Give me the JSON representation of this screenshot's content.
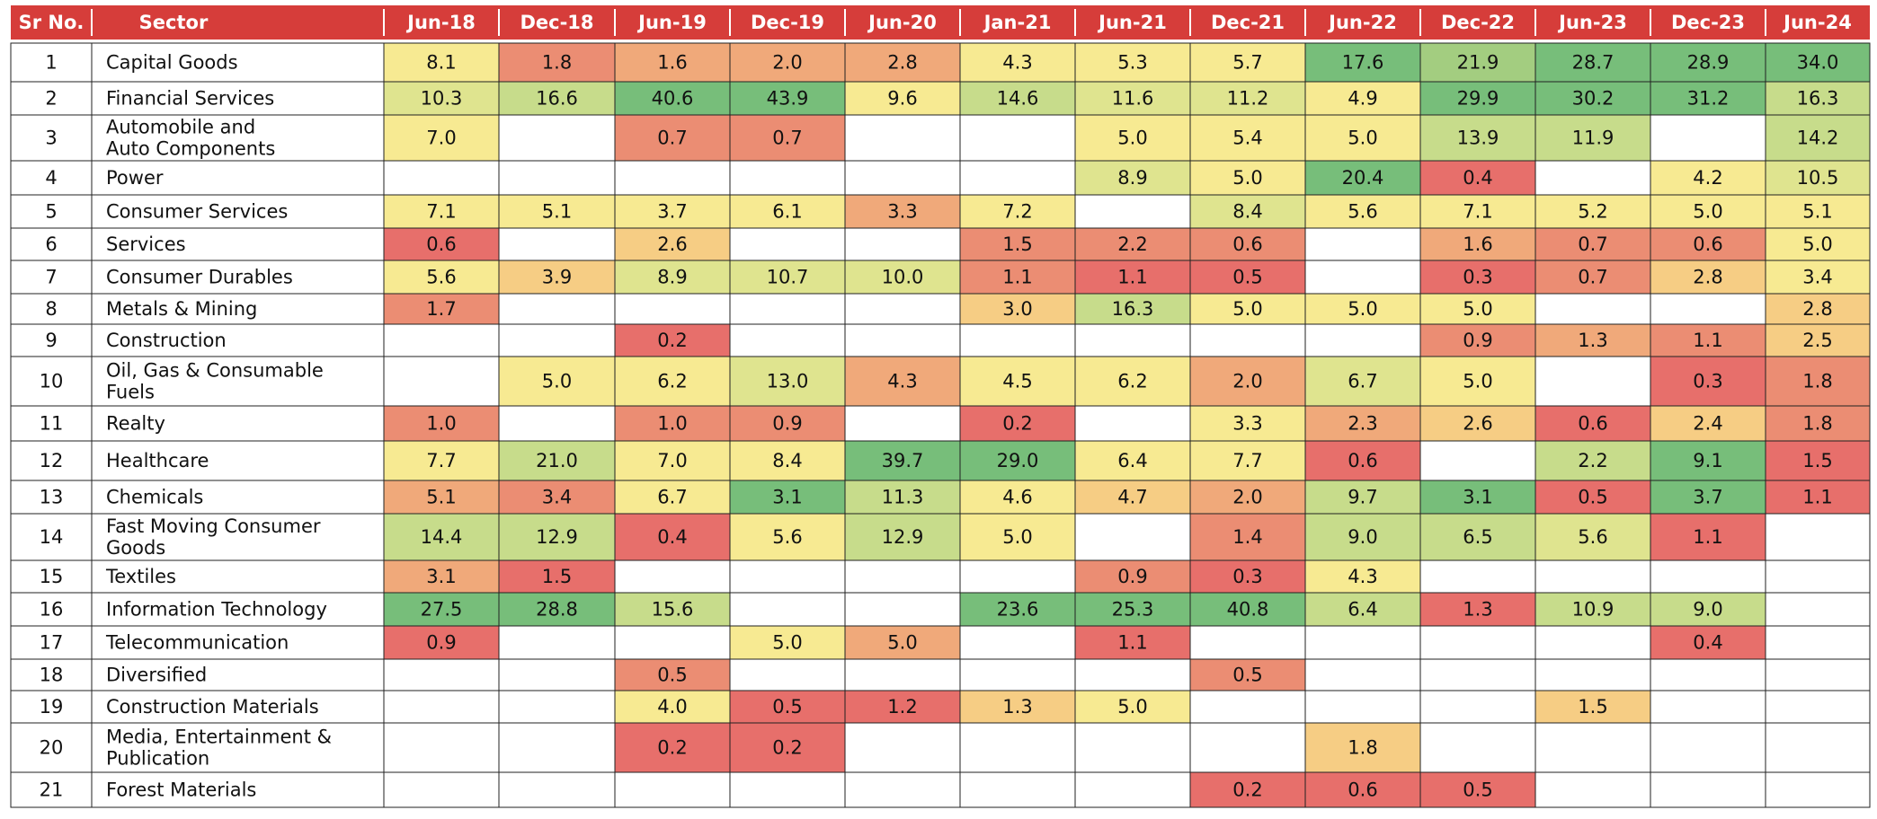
{
  "chart_data": {
    "type": "heatmap",
    "header": {
      "sr_no": "Sr No.",
      "sector": "Sector"
    },
    "columns": [
      "Jun-18",
      "Dec-18",
      "Jun-19",
      "Dec-19",
      "Jun-20",
      "Jan-21",
      "Jun-21",
      "Dec-21",
      "Jun-22",
      "Dec-22",
      "Jun-23",
      "Dec-23",
      "Jun-24"
    ],
    "rows": [
      {
        "sr": "1",
        "sector": [
          "Capital Goods"
        ],
        "values": [
          "8.1",
          "1.8",
          "1.6",
          "2.0",
          "2.8",
          "4.3",
          "5.3",
          "5.7",
          "17.6",
          "21.9",
          "28.7",
          "28.9",
          "34.0"
        ]
      },
      {
        "sr": "2",
        "sector": [
          "Financial Services"
        ],
        "values": [
          "10.3",
          "16.6",
          "40.6",
          "43.9",
          "9.6",
          "14.6",
          "11.6",
          "11.2",
          "4.9",
          "29.9",
          "30.2",
          "31.2",
          "16.3"
        ]
      },
      {
        "sr": "3",
        "sector": [
          "Automobile and",
          "Auto Components"
        ],
        "values": [
          "7.0",
          "",
          "0.7",
          "0.7",
          "",
          "",
          "5.0",
          "5.4",
          "5.0",
          "13.9",
          "11.9",
          "",
          "14.2"
        ]
      },
      {
        "sr": "4",
        "sector": [
          "Power"
        ],
        "values": [
          "",
          "",
          "",
          "",
          "",
          "",
          "8.9",
          "5.0",
          "20.4",
          "0.4",
          "",
          "4.2",
          "10.5"
        ]
      },
      {
        "sr": "5",
        "sector": [
          "Consumer Services"
        ],
        "values": [
          "7.1",
          "5.1",
          "3.7",
          "6.1",
          "3.3",
          "7.2",
          "",
          "8.4",
          "5.6",
          "7.1",
          "5.2",
          "5.0",
          "5.1"
        ]
      },
      {
        "sr": "6",
        "sector": [
          "Services"
        ],
        "values": [
          "0.6",
          "",
          "2.6",
          "",
          "",
          "1.5",
          "2.2",
          "0.6",
          "",
          "1.6",
          "0.7",
          "0.6",
          "5.0"
        ]
      },
      {
        "sr": "7",
        "sector": [
          "Consumer Durables"
        ],
        "values": [
          "5.6",
          "3.9",
          "8.9",
          "10.7",
          "10.0",
          "1.1",
          "1.1",
          "0.5",
          "",
          "0.3",
          "0.7",
          "2.8",
          "3.4"
        ]
      },
      {
        "sr": "8",
        "sector": [
          "Metals & Mining"
        ],
        "values": [
          "1.7",
          "",
          "",
          "",
          "",
          "3.0",
          "16.3",
          "5.0",
          "5.0",
          "5.0",
          "",
          "",
          "2.8"
        ]
      },
      {
        "sr": "9",
        "sector": [
          "Construction"
        ],
        "values": [
          "",
          "",
          "0.2",
          "",
          "",
          "",
          "",
          "",
          "",
          "0.9",
          "1.3",
          "1.1",
          "2.5"
        ]
      },
      {
        "sr": "10",
        "sector": [
          "Oil, Gas & Consumable",
          "Fuels"
        ],
        "values": [
          "",
          "5.0",
          "6.2",
          "13.0",
          "4.3",
          "4.5",
          "6.2",
          "2.0",
          "6.7",
          "5.0",
          "",
          "0.3",
          "1.8"
        ]
      },
      {
        "sr": "11",
        "sector": [
          "Realty"
        ],
        "values": [
          "1.0",
          "",
          "1.0",
          "0.9",
          "",
          "0.2",
          "",
          "3.3",
          "2.3",
          "2.6",
          "0.6",
          "2.4",
          "1.8"
        ]
      },
      {
        "sr": "12",
        "sector": [
          "Healthcare"
        ],
        "values": [
          "7.7",
          "21.0",
          "7.0",
          "8.4",
          "39.7",
          "29.0",
          "6.4",
          "7.7",
          "0.6",
          "",
          "2.2",
          "9.1",
          "1.5"
        ]
      },
      {
        "sr": "13",
        "sector": [
          "Chemicals"
        ],
        "values": [
          "5.1",
          "3.4",
          "6.7",
          "3.1",
          "11.3",
          "4.6",
          "4.7",
          "2.0",
          "9.7",
          "3.1",
          "0.5",
          "3.7",
          "1.1"
        ]
      },
      {
        "sr": "14",
        "sector": [
          "Fast Moving Consumer",
          "Goods"
        ],
        "values": [
          "14.4",
          "12.9",
          "0.4",
          "5.6",
          "12.9",
          "5.0",
          "",
          "1.4",
          "9.0",
          "6.5",
          "5.6",
          "1.1",
          ""
        ]
      },
      {
        "sr": "15",
        "sector": [
          "Textiles"
        ],
        "values": [
          "3.1",
          "1.5",
          "",
          "",
          "",
          "",
          "0.9",
          "0.3",
          "4.3",
          "",
          "",
          "",
          ""
        ]
      },
      {
        "sr": "16",
        "sector": [
          "Information Technology"
        ],
        "values": [
          "27.5",
          "28.8",
          "15.6",
          "",
          "",
          "23.6",
          "25.3",
          "40.8",
          "6.4",
          "1.3",
          "10.9",
          "9.0",
          ""
        ]
      },
      {
        "sr": "17",
        "sector": [
          "Telecommunication"
        ],
        "values": [
          "0.9",
          "",
          "",
          "5.0",
          "5.0",
          "",
          "1.1",
          "",
          "",
          "",
          "",
          "0.4",
          ""
        ]
      },
      {
        "sr": "18",
        "sector": [
          "Diversified"
        ],
        "values": [
          "",
          "",
          "0.5",
          "",
          "",
          "",
          "",
          "0.5",
          "",
          "",
          "",
          "",
          ""
        ]
      },
      {
        "sr": "19",
        "sector": [
          "Construction Materials"
        ],
        "values": [
          "",
          "",
          "4.0",
          "0.5",
          "1.2",
          "1.3",
          "5.0",
          "",
          "",
          "",
          "1.5",
          "",
          ""
        ]
      },
      {
        "sr": "20",
        "sector": [
          "Media, Entertainment &",
          "Publication"
        ],
        "values": [
          "",
          "",
          "0.2",
          "0.2",
          "",
          "",
          "",
          "",
          "1.8",
          "",
          "",
          "",
          ""
        ]
      },
      {
        "sr": "21",
        "sector": [
          "Forest Materials"
        ],
        "values": [
          "",
          "",
          "",
          "",
          "",
          "",
          "",
          "0.2",
          "0.6",
          "0.5",
          "",
          "",
          ""
        ]
      }
    ],
    "colors": {
      "header_bg": "#d63d3a",
      "dark_green": "#77be7a",
      "green": "#a3cd80",
      "light_green": "#c7dc8b",
      "yellow_green": "#dfe48f",
      "yellow": "#f7ea92",
      "light_orange": "#f6cd84",
      "orange": "#f0a97a",
      "salmon": "#eb8d73",
      "red": "#e76f6b",
      "empty": "#ffffff"
    },
    "cell_colors": [
      [
        "yellow",
        "salmon",
        "orange",
        "orange",
        "orange",
        "yellow",
        "yellow",
        "yellow",
        "dark_green",
        "green",
        "dark_green",
        "dark_green",
        "dark_green"
      ],
      [
        "yellow_green",
        "light_green",
        "dark_green",
        "dark_green",
        "yellow",
        "light_green",
        "yellow_green",
        "yellow_green",
        "yellow",
        "dark_green",
        "dark_green",
        "dark_green",
        "light_green"
      ],
      [
        "yellow",
        "empty",
        "salmon",
        "salmon",
        "empty",
        "empty",
        "yellow",
        "yellow",
        "yellow",
        "light_green",
        "light_green",
        "empty",
        "light_green"
      ],
      [
        "empty",
        "empty",
        "empty",
        "empty",
        "empty",
        "empty",
        "yellow_green",
        "yellow",
        "dark_green",
        "red",
        "empty",
        "yellow",
        "yellow_green"
      ],
      [
        "yellow",
        "yellow",
        "yellow",
        "yellow",
        "orange",
        "yellow",
        "empty",
        "yellow_green",
        "yellow",
        "yellow",
        "yellow",
        "yellow",
        "yellow"
      ],
      [
        "red",
        "empty",
        "light_orange",
        "empty",
        "empty",
        "salmon",
        "salmon",
        "salmon",
        "empty",
        "orange",
        "salmon",
        "salmon",
        "yellow"
      ],
      [
        "yellow",
        "light_orange",
        "yellow_green",
        "yellow_green",
        "yellow_green",
        "salmon",
        "red",
        "red",
        "empty",
        "red",
        "salmon",
        "light_orange",
        "yellow"
      ],
      [
        "salmon",
        "empty",
        "empty",
        "empty",
        "empty",
        "light_orange",
        "light_green",
        "yellow",
        "yellow",
        "yellow",
        "empty",
        "empty",
        "light_orange"
      ],
      [
        "empty",
        "empty",
        "red",
        "empty",
        "empty",
        "empty",
        "empty",
        "empty",
        "empty",
        "salmon",
        "orange",
        "salmon",
        "light_orange"
      ],
      [
        "empty",
        "yellow",
        "yellow",
        "yellow_green",
        "orange",
        "yellow",
        "yellow",
        "orange",
        "yellow_green",
        "yellow",
        "empty",
        "red",
        "salmon"
      ],
      [
        "salmon",
        "empty",
        "salmon",
        "salmon",
        "empty",
        "red",
        "empty",
        "yellow",
        "orange",
        "light_orange",
        "red",
        "light_orange",
        "salmon"
      ],
      [
        "yellow",
        "light_green",
        "yellow",
        "yellow",
        "dark_green",
        "dark_green",
        "yellow",
        "yellow",
        "red",
        "empty",
        "light_green",
        "dark_green",
        "red"
      ],
      [
        "orange",
        "salmon",
        "yellow",
        "dark_green",
        "light_green",
        "yellow",
        "light_orange",
        "orange",
        "light_green",
        "dark_green",
        "red",
        "dark_green",
        "red"
      ],
      [
        "light_green",
        "light_green",
        "red",
        "yellow",
        "light_green",
        "yellow",
        "empty",
        "salmon",
        "light_green",
        "light_green",
        "yellow_green",
        "red",
        "empty"
      ],
      [
        "orange",
        "red",
        "empty",
        "empty",
        "empty",
        "empty",
        "salmon",
        "red",
        "yellow",
        "empty",
        "empty",
        "empty",
        "empty"
      ],
      [
        "dark_green",
        "dark_green",
        "light_green",
        "empty",
        "empty",
        "dark_green",
        "dark_green",
        "dark_green",
        "light_green",
        "red",
        "light_green",
        "light_green",
        "empty"
      ],
      [
        "red",
        "empty",
        "empty",
        "yellow",
        "orange",
        "empty",
        "red",
        "empty",
        "empty",
        "empty",
        "empty",
        "red",
        "empty"
      ],
      [
        "empty",
        "empty",
        "salmon",
        "empty",
        "empty",
        "empty",
        "empty",
        "salmon",
        "empty",
        "empty",
        "empty",
        "empty",
        "empty"
      ],
      [
        "empty",
        "empty",
        "yellow",
        "red",
        "red",
        "light_orange",
        "yellow",
        "empty",
        "empty",
        "empty",
        "light_orange",
        "empty",
        "empty"
      ],
      [
        "empty",
        "empty",
        "red",
        "red",
        "empty",
        "empty",
        "empty",
        "empty",
        "light_orange",
        "empty",
        "empty",
        "empty",
        "empty"
      ],
      [
        "empty",
        "empty",
        "empty",
        "empty",
        "empty",
        "empty",
        "empty",
        "red",
        "red",
        "red",
        "empty",
        "empty",
        "empty"
      ]
    ]
  }
}
